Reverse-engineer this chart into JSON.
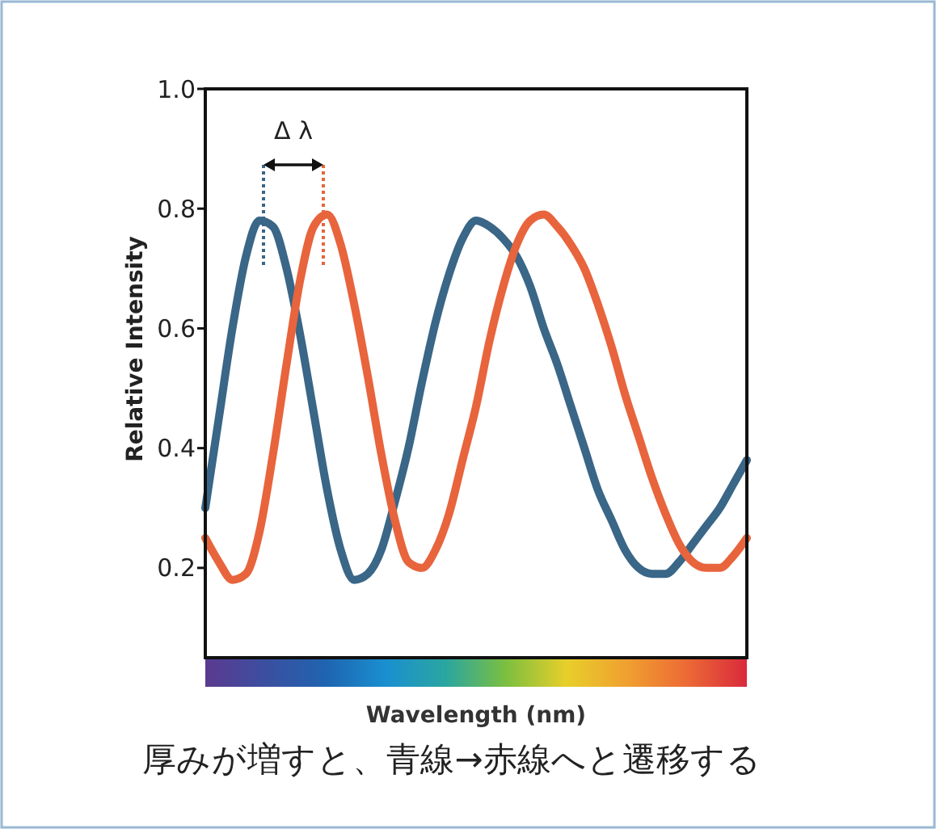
{
  "chart_data": {
    "type": "line",
    "xlabel": "Wavelength (nm)",
    "ylabel": "Relative Intensity",
    "categories": [
      null,
      null,
      null,
      null,
      null,
      null,
      null,
      null,
      null,
      null,
      null,
      null,
      null,
      null,
      null,
      null,
      null,
      null,
      null,
      null,
      null,
      null,
      null,
      null,
      null,
      null,
      null,
      null,
      null,
      null,
      null,
      null,
      null,
      null,
      null,
      null,
      null,
      null,
      null,
      null,
      null
    ],
    "series": [
      {
        "color": "#3a6687",
        "values": [
          0.3,
          0.45,
          0.6,
          0.72,
          0.78,
          0.77,
          0.7,
          0.59,
          0.46,
          0.33,
          0.23,
          0.18,
          0.19,
          0.23,
          0.31,
          0.4,
          0.51,
          0.61,
          0.69,
          0.75,
          0.78,
          0.77,
          0.75,
          0.72,
          0.67,
          0.6,
          0.54,
          0.47,
          0.4,
          0.33,
          0.28,
          0.23,
          0.2,
          0.19,
          0.19,
          0.21,
          0.24,
          0.27,
          0.3,
          0.34,
          0.38
        ]
      },
      {
        "color": "#e8643c",
        "values": [
          0.25,
          0.21,
          0.18,
          0.19,
          0.26,
          0.39,
          0.54,
          0.68,
          0.77,
          0.79,
          0.74,
          0.64,
          0.52,
          0.39,
          0.28,
          0.21,
          0.2,
          0.23,
          0.29,
          0.38,
          0.47,
          0.58,
          0.67,
          0.74,
          0.78,
          0.79,
          0.77,
          0.74,
          0.7,
          0.64,
          0.57,
          0.49,
          0.42,
          0.35,
          0.29,
          0.24,
          0.21,
          0.2,
          0.2,
          0.22,
          0.25
        ]
      }
    ],
    "ylim": [
      0.05,
      1.0
    ],
    "yticks": [
      0.2,
      0.4,
      0.6,
      0.8,
      {
        "value": 1.0,
        "label": "1.0"
      }
    ],
    "tick_labels": "y",
    "grid": false,
    "marker": "none",
    "line_style": "solid",
    "annotations": [
      "Δ λ",
      "厚みが増すと、青線→赤線へと遷移する"
    ]
  }
}
